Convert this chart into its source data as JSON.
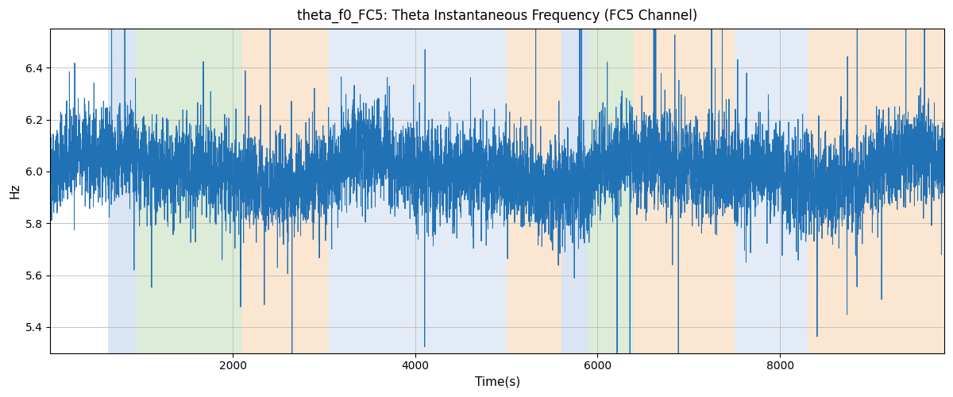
{
  "title": "theta_f0_FC5: Theta Instantaneous Frequency (FC5 Channel)",
  "xlabel": "Time(s)",
  "ylabel": "Hz",
  "xlim": [
    0,
    9800
  ],
  "ylim": [
    5.3,
    6.55
  ],
  "yticks": [
    5.4,
    5.6,
    5.8,
    6.0,
    6.2,
    6.4
  ],
  "xticks": [
    2000,
    4000,
    6000,
    8000
  ],
  "line_color": "#2171b5",
  "line_width": 0.7,
  "bg_color": "#ffffff",
  "grid_color": "#bbbbbb",
  "seed": 42,
  "n_points": 9800,
  "mean_freq": 6.0,
  "colored_bands": [
    {
      "xmin": 630,
      "xmax": 950,
      "color": "#aec6e8",
      "alpha": 0.45
    },
    {
      "xmin": 950,
      "xmax": 2100,
      "color": "#b5d6a7",
      "alpha": 0.45
    },
    {
      "xmin": 2100,
      "xmax": 3050,
      "color": "#f7c99a",
      "alpha": 0.45
    },
    {
      "xmin": 3050,
      "xmax": 3450,
      "color": "#aec6e8",
      "alpha": 0.35
    },
    {
      "xmin": 3450,
      "xmax": 5000,
      "color": "#aec6e8",
      "alpha": 0.35
    },
    {
      "xmin": 5000,
      "xmax": 5600,
      "color": "#f7c99a",
      "alpha": 0.45
    },
    {
      "xmin": 5600,
      "xmax": 5900,
      "color": "#aec6e8",
      "alpha": 0.45
    },
    {
      "xmin": 5900,
      "xmax": 6400,
      "color": "#b5d6a7",
      "alpha": 0.45
    },
    {
      "xmin": 6400,
      "xmax": 7500,
      "color": "#f7c99a",
      "alpha": 0.45
    },
    {
      "xmin": 7500,
      "xmax": 8300,
      "color": "#aec6e8",
      "alpha": 0.35
    },
    {
      "xmin": 8300,
      "xmax": 9800,
      "color": "#f7c99a",
      "alpha": 0.45
    }
  ]
}
